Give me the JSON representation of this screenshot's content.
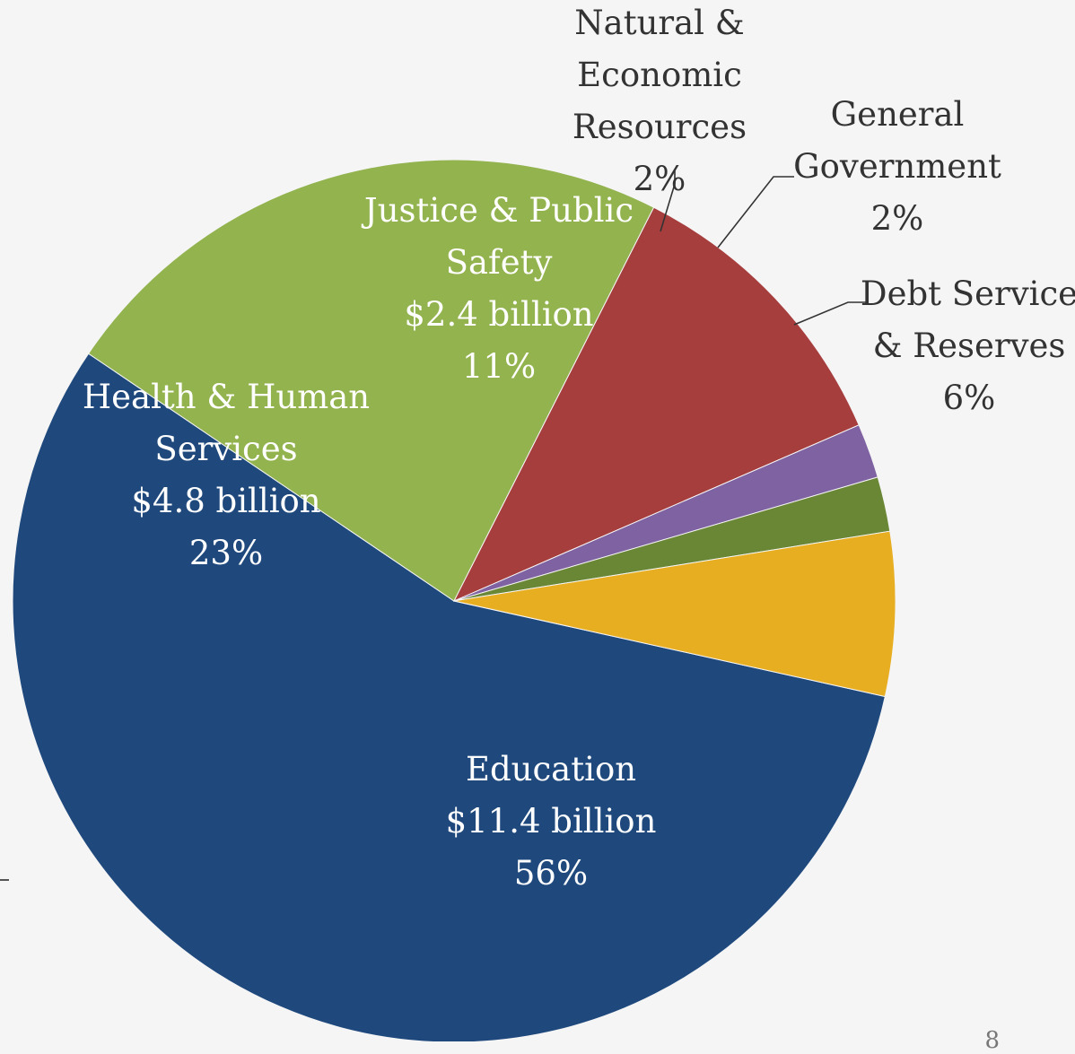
{
  "chart_data": {
    "type": "pie",
    "unit": "billion",
    "slices": [
      {
        "name": "Education",
        "lines": [
          "Education",
          "$11.4 billion",
          "56%"
        ],
        "value": 11.4,
        "percent": 56,
        "color": "#1f497d",
        "label_style": "inside"
      },
      {
        "name": "Health & Human Services",
        "lines": [
          "Health & Human",
          "Services",
          "$4.8 billion",
          "23%"
        ],
        "value": 4.8,
        "percent": 23,
        "color": "#92b34e",
        "label_style": "inside"
      },
      {
        "name": "Justice & Public Safety",
        "lines": [
          "Justice & Public",
          "Safety",
          "$2.4 billion",
          "11%"
        ],
        "value": 2.4,
        "percent": 11,
        "color": "#a73e3e",
        "label_style": "inside"
      },
      {
        "name": "Natural & Economic Resources",
        "lines": [
          "Natural &",
          "Economic",
          "Resources",
          "2%"
        ],
        "percent": 2,
        "color": "#7f62a1",
        "label_style": "outside"
      },
      {
        "name": "General Government",
        "lines": [
          "General",
          "Government",
          "2%"
        ],
        "percent": 2,
        "color": "#6a8735",
        "label_style": "outside"
      },
      {
        "name": "Debt Service & Reserves",
        "lines": [
          "Debt Service",
          "& Reserves",
          "6%"
        ],
        "percent": 6,
        "color": "#e8ae22",
        "label_style": "outside"
      }
    ]
  },
  "page_number": "8"
}
